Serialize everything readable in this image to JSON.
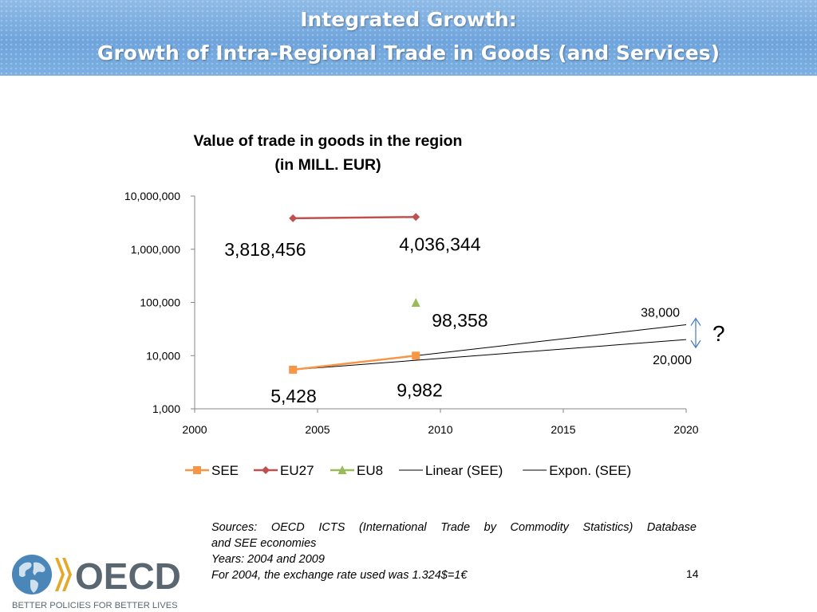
{
  "slide": {
    "title_line1": "Integrated Growth:",
    "title_line2": "Growth of Intra-Regional Trade in Goods (and Services)",
    "sources_line1": "Sources: OECD ICTS (International Trade by Commodity Statistics) Database",
    "sources_line2": "and SEE economies",
    "sources_line3": "Years: 2004 and 2009",
    "sources_line4": "For 2004, the exchange rate used was 1.324$=1€",
    "page_number": "14"
  },
  "logo": {
    "text": "OECD",
    "tagline": "BETTER POLICIES FOR BETTER LIVES",
    "colors": {
      "globe": "#4a86b8",
      "chevrons": "#e3a92b",
      "text": "#5b6770"
    }
  },
  "chart_data": {
    "type": "line",
    "title_line1": "Value of trade in goods in the region",
    "title_line2": "(in MILL. EUR)",
    "y_scale": "log",
    "ylim": [
      1000,
      10000000
    ],
    "xlim": [
      2000,
      2020
    ],
    "x_ticks": [
      "2000",
      "2005",
      "2010",
      "2015",
      "2020"
    ],
    "y_ticks": [
      {
        "value": 1000,
        "label": "1,000"
      },
      {
        "value": 10000,
        "label": "10,000"
      },
      {
        "value": 100000,
        "label": "100,000"
      },
      {
        "value": 1000000,
        "label": "1,000,000"
      },
      {
        "value": 10000000,
        "label": "10,000,000"
      }
    ],
    "grid": false,
    "legend_position": "bottom",
    "series": [
      {
        "name": "SEE",
        "marker": "square",
        "color": "#f79646",
        "line": true,
        "points": [
          {
            "x": 2004,
            "y": 5428,
            "label": "5,428"
          },
          {
            "x": 2009,
            "y": 9982,
            "label": "9,982"
          }
        ]
      },
      {
        "name": "EU27",
        "marker": "diamond",
        "color": "#c0504d",
        "line": true,
        "points": [
          {
            "x": 2004,
            "y": 3818456,
            "label": "3,818,456"
          },
          {
            "x": 2009,
            "y": 4036344,
            "label": "4,036,344"
          }
        ]
      },
      {
        "name": "EU8",
        "marker": "triangle",
        "color": "#9bbb59",
        "line": false,
        "points": [
          {
            "x": 2009,
            "y": 98358,
            "label": "98,358"
          }
        ]
      }
    ],
    "trendlines": [
      {
        "name": "Linear (SEE)",
        "color": "#000000",
        "points": [
          {
            "x": 2004,
            "y": 5428
          },
          {
            "x": 2020,
            "y": 20000
          }
        ],
        "end_label": "20,000"
      },
      {
        "name": "Expon. (SEE)",
        "color": "#000000",
        "points": [
          {
            "x": 2004,
            "y": 5428
          },
          {
            "x": 2020,
            "y": 38000
          }
        ],
        "end_label": "38,000"
      }
    ],
    "annotation": {
      "text": "?",
      "arrow": "double-headed",
      "color": "#4f81bd",
      "from_value": 20000,
      "to_value": 38000
    }
  }
}
